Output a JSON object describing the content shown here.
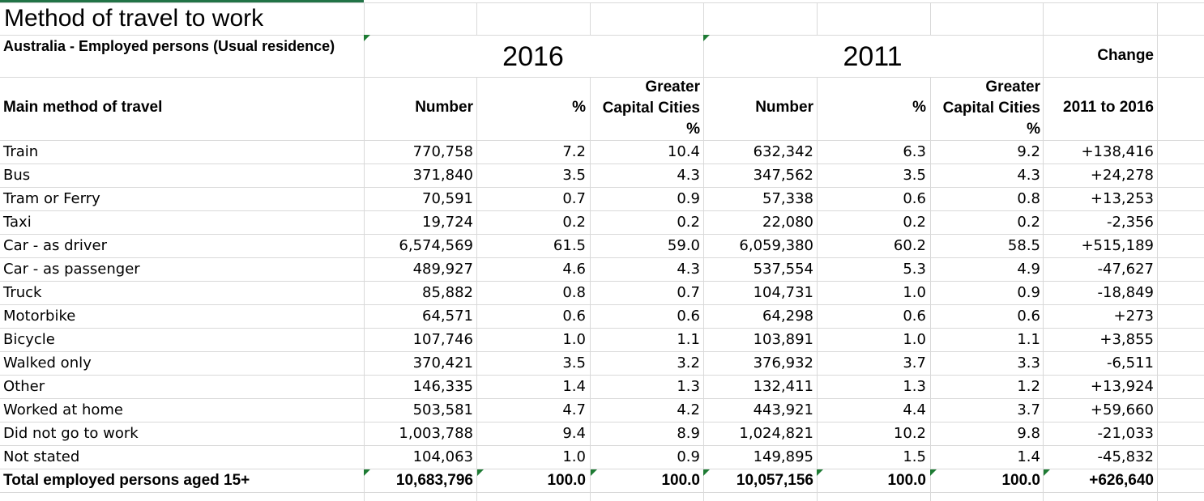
{
  "title": "Method of travel to work",
  "subtitle": "Australia - Employed persons (Usual residence)",
  "years": {
    "y2016": "2016",
    "y2011": "2011",
    "change": "Change"
  },
  "headers": {
    "method": "Main method of travel",
    "number": "Number",
    "pct": "%",
    "gcc_line1": "Greater",
    "gcc_line2": "Capital Cities",
    "gcc_line3": "%",
    "change_range": "2011 to 2016"
  },
  "rows": [
    {
      "label": "Train",
      "n16": "770,758",
      "p16": "7.2",
      "g16": "10.4",
      "n11": "632,342",
      "p11": "6.3",
      "g11": "9.2",
      "chg": "+138,416"
    },
    {
      "label": "Bus",
      "n16": "371,840",
      "p16": "3.5",
      "g16": "4.3",
      "n11": "347,562",
      "p11": "3.5",
      "g11": "4.3",
      "chg": "+24,278"
    },
    {
      "label": "Tram or Ferry",
      "n16": "70,591",
      "p16": "0.7",
      "g16": "0.9",
      "n11": "57,338",
      "p11": "0.6",
      "g11": "0.8",
      "chg": "+13,253"
    },
    {
      "label": "Taxi",
      "n16": "19,724",
      "p16": "0.2",
      "g16": "0.2",
      "n11": "22,080",
      "p11": "0.2",
      "g11": "0.2",
      "chg": "-2,356"
    },
    {
      "label": "Car - as driver",
      "n16": "6,574,569",
      "p16": "61.5",
      "g16": "59.0",
      "n11": "6,059,380",
      "p11": "60.2",
      "g11": "58.5",
      "chg": "+515,189"
    },
    {
      "label": "Car - as passenger",
      "n16": "489,927",
      "p16": "4.6",
      "g16": "4.3",
      "n11": "537,554",
      "p11": "5.3",
      "g11": "4.9",
      "chg": "-47,627"
    },
    {
      "label": "Truck",
      "n16": "85,882",
      "p16": "0.8",
      "g16": "0.7",
      "n11": "104,731",
      "p11": "1.0",
      "g11": "0.9",
      "chg": "-18,849"
    },
    {
      "label": "Motorbike",
      "n16": "64,571",
      "p16": "0.6",
      "g16": "0.6",
      "n11": "64,298",
      "p11": "0.6",
      "g11": "0.6",
      "chg": "+273"
    },
    {
      "label": "Bicycle",
      "n16": "107,746",
      "p16": "1.0",
      "g16": "1.1",
      "n11": "103,891",
      "p11": "1.0",
      "g11": "1.1",
      "chg": "+3,855"
    },
    {
      "label": "Walked only",
      "n16": "370,421",
      "p16": "3.5",
      "g16": "3.2",
      "n11": "376,932",
      "p11": "3.7",
      "g11": "3.3",
      "chg": "-6,511"
    },
    {
      "label": "Other",
      "n16": "146,335",
      "p16": "1.4",
      "g16": "1.3",
      "n11": "132,411",
      "p11": "1.3",
      "g11": "1.2",
      "chg": "+13,924"
    },
    {
      "label": "Worked at home",
      "n16": "503,581",
      "p16": "4.7",
      "g16": "4.2",
      "n11": "443,921",
      "p11": "4.4",
      "g11": "3.7",
      "chg": "+59,660"
    },
    {
      "label": "Did not go to work",
      "n16": "1,003,788",
      "p16": "9.4",
      "g16": "8.9",
      "n11": "1,024,821",
      "p11": "10.2",
      "g11": "9.8",
      "chg": "-21,033"
    },
    {
      "label": "Not stated",
      "n16": "104,063",
      "p16": "1.0",
      "g16": "0.9",
      "n11": "149,895",
      "p11": "1.5",
      "g11": "1.4",
      "chg": "-45,832"
    }
  ],
  "total": {
    "label": "Total employed persons aged 15+",
    "n16": "10,683,796",
    "p16": "100.0",
    "g16": "100.0",
    "n11": "10,057,156",
    "p11": "100.0",
    "g11": "100.0",
    "chg": "+626,640"
  },
  "colors": {
    "gridline": "#d9d9d9",
    "error_indicator": "#1e7b34",
    "selection": "#217346"
  }
}
